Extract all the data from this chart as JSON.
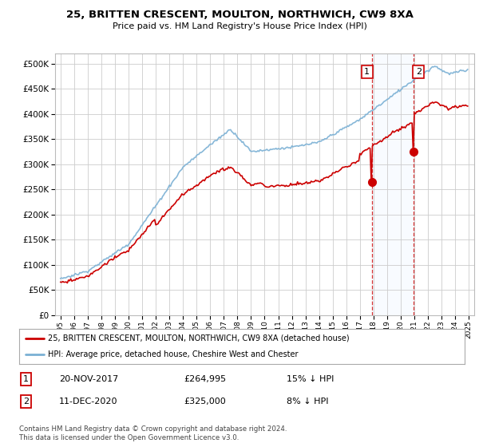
{
  "title": "25, BRITTEN CRESCENT, MOULTON, NORTHWICH, CW9 8XA",
  "subtitle": "Price paid vs. HM Land Registry's House Price Index (HPI)",
  "legend_label_red": "25, BRITTEN CRESCENT, MOULTON, NORTHWICH, CW9 8XA (detached house)",
  "legend_label_blue": "HPI: Average price, detached house, Cheshire West and Chester",
  "transaction1_date": "20-NOV-2017",
  "transaction1_price": "£264,995",
  "transaction1_hpi": "15% ↓ HPI",
  "transaction2_date": "11-DEC-2020",
  "transaction2_price": "£325,000",
  "transaction2_hpi": "8% ↓ HPI",
  "footnote": "Contains HM Land Registry data © Crown copyright and database right 2024.\nThis data is licensed under the Open Government Licence v3.0.",
  "color_red": "#cc0000",
  "color_blue": "#7ab0d4",
  "color_highlight": "#ddeeff",
  "color_vline": "#cc0000",
  "background_color": "#ffffff",
  "grid_color": "#cccccc",
  "ylim_min": 0,
  "ylim_max": 520000,
  "t1_year": 2017.88,
  "t2_year": 2020.95,
  "price1": 264995,
  "price2": 325000
}
